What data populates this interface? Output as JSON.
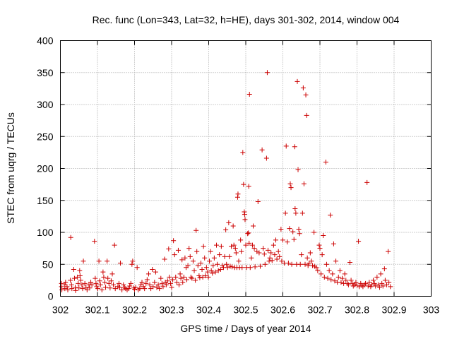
{
  "chart_data": {
    "type": "scatter",
    "title": "Rec. func (Lon=343, Lat=32, h=HE), days 301-302, 2014, window 004",
    "xlabel": "GPS time / Days of year 2014",
    "ylabel": "STEC from uqrg / TECUs",
    "xlim": [
      302,
      303
    ],
    "ylim": [
      0,
      400
    ],
    "xticks": [
      "302",
      "302.1",
      "302.2",
      "302.3",
      "302.4",
      "302.5",
      "302.6",
      "302.7",
      "302.8",
      "302.9",
      "303"
    ],
    "yticks": [
      "0",
      "50",
      "100",
      "150",
      "200",
      "250",
      "300",
      "350",
      "400"
    ],
    "grid": true,
    "legend": "none",
    "marker": "plus",
    "color": "#cc0000",
    "series": [
      {
        "points": [
          [
            302.003,
            20
          ],
          [
            302.003,
            15
          ],
          [
            302.004,
            10
          ],
          [
            302.012,
            18
          ],
          [
            302.012,
            12
          ],
          [
            302.014,
            22
          ],
          [
            302.018,
            15
          ],
          [
            302.02,
            10
          ],
          [
            302.027,
            25
          ],
          [
            302.028,
            92
          ],
          [
            302.03,
            18
          ],
          [
            302.031,
            12
          ],
          [
            302.036,
            42
          ],
          [
            302.038,
            28
          ],
          [
            302.04,
            14
          ],
          [
            302.041,
            9
          ],
          [
            302.046,
            30
          ],
          [
            302.048,
            20
          ],
          [
            302.05,
            13
          ],
          [
            302.052,
            40
          ],
          [
            302.053,
            32
          ],
          [
            302.055,
            25
          ],
          [
            302.058,
            18
          ],
          [
            302.06,
            12
          ],
          [
            302.062,
            55
          ],
          [
            302.066,
            20
          ],
          [
            302.069,
            14
          ],
          [
            302.072,
            10
          ],
          [
            302.077,
            18
          ],
          [
            302.079,
            13
          ],
          [
            302.082,
            22
          ],
          [
            302.085,
            18
          ],
          [
            302.092,
            86
          ],
          [
            302.094,
            28
          ],
          [
            302.096,
            20
          ],
          [
            302.098,
            15
          ],
          [
            302.101,
            12
          ],
          [
            302.104,
            55
          ],
          [
            302.106,
            24
          ],
          [
            302.108,
            18
          ],
          [
            302.112,
            10
          ],
          [
            302.115,
            38
          ],
          [
            302.117,
            30
          ],
          [
            302.12,
            22
          ],
          [
            302.122,
            14
          ],
          [
            302.126,
            55
          ],
          [
            302.128,
            28
          ],
          [
            302.131,
            20
          ],
          [
            302.134,
            13
          ],
          [
            302.137,
            24
          ],
          [
            302.14,
            35
          ],
          [
            302.143,
            18
          ],
          [
            302.146,
            80
          ],
          [
            302.148,
            12
          ],
          [
            302.155,
            15
          ],
          [
            302.158,
            20
          ],
          [
            302.16,
            14
          ],
          [
            302.162,
            52
          ],
          [
            302.166,
            10
          ],
          [
            302.17,
            18
          ],
          [
            302.173,
            14
          ],
          [
            302.176,
            12
          ],
          [
            302.18,
            10
          ],
          [
            302.184,
            12
          ],
          [
            302.187,
            16
          ],
          [
            302.19,
            20
          ],
          [
            302.193,
            50
          ],
          [
            302.195,
            55
          ],
          [
            302.198,
            13
          ],
          [
            302.2,
            11
          ],
          [
            302.203,
            14
          ],
          [
            302.207,
            45
          ],
          [
            302.21,
            10
          ],
          [
            302.214,
            12
          ],
          [
            302.217,
            18
          ],
          [
            302.22,
            22
          ],
          [
            302.224,
            15
          ],
          [
            302.227,
            12
          ],
          [
            302.231,
            20
          ],
          [
            302.234,
            26
          ],
          [
            302.238,
            35
          ],
          [
            302.241,
            18
          ],
          [
            302.244,
            12
          ],
          [
            302.248,
            42
          ],
          [
            302.25,
            15
          ],
          [
            302.254,
            22
          ],
          [
            302.257,
            38
          ],
          [
            302.26,
            14
          ],
          [
            302.264,
            18
          ],
          [
            302.267,
            12
          ],
          [
            302.271,
            28
          ],
          [
            302.274,
            20
          ],
          [
            302.277,
            15
          ],
          [
            302.281,
            58
          ],
          [
            302.283,
            22
          ],
          [
            302.286,
            18
          ],
          [
            302.289,
            24
          ],
          [
            302.292,
            74
          ],
          [
            302.294,
            30
          ],
          [
            302.297,
            20
          ],
          [
            302.3,
            14
          ],
          [
            302.303,
            26
          ],
          [
            302.305,
            87
          ],
          [
            302.308,
            65
          ],
          [
            302.311,
            30
          ],
          [
            302.314,
            22
          ],
          [
            302.318,
            72
          ],
          [
            302.32,
            18
          ],
          [
            302.323,
            35
          ],
          [
            302.325,
            28
          ],
          [
            302.328,
            57
          ],
          [
            302.33,
            22
          ],
          [
            302.333,
            30
          ],
          [
            302.336,
            60
          ],
          [
            302.339,
            45
          ],
          [
            302.341,
            26
          ],
          [
            302.344,
            48
          ],
          [
            302.347,
            75
          ],
          [
            302.35,
            62
          ],
          [
            302.352,
            30
          ],
          [
            302.355,
            28
          ],
          [
            302.358,
            55
          ],
          [
            302.361,
            40
          ],
          [
            302.364,
            25
          ],
          [
            302.366,
            103
          ],
          [
            302.368,
            70
          ],
          [
            302.371,
            48
          ],
          [
            302.374,
            32
          ],
          [
            302.376,
            29
          ],
          [
            302.379,
            52
          ],
          [
            302.382,
            42
          ],
          [
            302.384,
            30
          ],
          [
            302.386,
            78
          ],
          [
            302.389,
            60
          ],
          [
            302.391,
            32
          ],
          [
            302.394,
            45
          ],
          [
            302.397,
            38
          ],
          [
            302.399,
            30
          ],
          [
            302.402,
            55
          ],
          [
            302.405,
            70
          ],
          [
            302.407,
            40
          ],
          [
            302.41,
            36
          ],
          [
            302.412,
            48
          ],
          [
            302.415,
            60
          ],
          [
            302.418,
            38
          ],
          [
            302.421,
            80
          ],
          [
            302.423,
            50
          ],
          [
            302.426,
            40
          ],
          [
            302.429,
            65
          ],
          [
            302.432,
            42
          ],
          [
            302.434,
            78
          ],
          [
            302.437,
            48
          ],
          [
            302.44,
            45
          ],
          [
            302.443,
            62
          ],
          [
            302.446,
            104
          ],
          [
            302.448,
            50
          ],
          [
            302.451,
            45
          ],
          [
            302.454,
            115
          ],
          [
            302.456,
            62
          ],
          [
            302.458,
            47
          ],
          [
            302.461,
            78
          ],
          [
            302.463,
            46
          ],
          [
            302.466,
            110
          ],
          [
            302.468,
            80
          ],
          [
            302.47,
            45
          ],
          [
            302.472,
            75
          ],
          [
            302.474,
            68
          ],
          [
            302.476,
            45
          ],
          [
            302.478,
            155
          ],
          [
            302.479,
            160
          ],
          [
            302.481,
            55
          ],
          [
            302.483,
            45
          ],
          [
            302.486,
            88
          ],
          [
            302.488,
            70
          ],
          [
            302.49,
            45
          ],
          [
            302.492,
            225
          ],
          [
            302.494,
            175
          ],
          [
            302.496,
            132
          ],
          [
            302.497,
            128
          ],
          [
            302.498,
            120
          ],
          [
            302.5,
            80
          ],
          [
            302.502,
            45
          ],
          [
            302.505,
            98
          ],
          [
            302.507,
            99
          ],
          [
            302.508,
            172
          ],
          [
            302.509,
            83
          ],
          [
            302.51,
            316
          ],
          [
            302.512,
            45
          ],
          [
            302.515,
            60
          ],
          [
            302.518,
            80
          ],
          [
            302.52,
            110
          ],
          [
            302.523,
            75
          ],
          [
            302.525,
            46
          ],
          [
            302.53,
            70
          ],
          [
            302.533,
            148
          ],
          [
            302.536,
            68
          ],
          [
            302.539,
            47
          ],
          [
            302.544,
            229
          ],
          [
            302.547,
            75
          ],
          [
            302.55,
            66
          ],
          [
            302.552,
            50
          ],
          [
            302.556,
            216
          ],
          [
            302.558,
            350
          ],
          [
            302.56,
            72
          ],
          [
            302.563,
            55
          ],
          [
            302.565,
            60
          ],
          [
            302.568,
            68
          ],
          [
            302.571,
            56
          ],
          [
            302.575,
            80
          ],
          [
            302.578,
            65
          ],
          [
            302.581,
            88
          ],
          [
            302.584,
            58
          ],
          [
            302.588,
            70
          ],
          [
            302.591,
            62
          ],
          [
            302.595,
            105
          ],
          [
            302.597,
            55
          ],
          [
            302.6,
            88
          ],
          [
            302.604,
            52
          ],
          [
            302.607,
            130
          ],
          [
            302.609,
            235
          ],
          [
            302.612,
            85
          ],
          [
            302.615,
            52
          ],
          [
            302.618,
            106
          ],
          [
            302.62,
            176
          ],
          [
            302.622,
            170
          ],
          [
            302.624,
            50
          ],
          [
            302.627,
            101
          ],
          [
            302.63,
            89
          ],
          [
            302.632,
            234
          ],
          [
            302.633,
            137
          ],
          [
            302.635,
            130
          ],
          [
            302.637,
            50
          ],
          [
            302.639,
            336
          ],
          [
            302.641,
            198
          ],
          [
            302.643,
            105
          ],
          [
            302.645,
            98
          ],
          [
            302.647,
            50
          ],
          [
            302.65,
            65
          ],
          [
            302.653,
            130
          ],
          [
            302.655,
            326
          ],
          [
            302.657,
            176
          ],
          [
            302.66,
            50
          ],
          [
            302.662,
            315
          ],
          [
            302.664,
            283
          ],
          [
            302.666,
            60
          ],
          [
            302.668,
            48
          ],
          [
            302.671,
            52
          ],
          [
            302.674,
            68
          ],
          [
            302.677,
            55
          ],
          [
            302.68,
            48
          ],
          [
            302.684,
            100
          ],
          [
            302.686,
            47
          ],
          [
            302.69,
            45
          ],
          [
            302.694,
            40
          ],
          [
            302.698,
            80
          ],
          [
            302.7,
            75
          ],
          [
            302.703,
            35
          ],
          [
            302.706,
            65
          ],
          [
            302.709,
            95
          ],
          [
            302.712,
            30
          ],
          [
            302.716,
            210
          ],
          [
            302.718,
            50
          ],
          [
            302.721,
            28
          ],
          [
            302.725,
            40
          ],
          [
            302.728,
            127
          ],
          [
            302.73,
            26
          ],
          [
            302.734,
            35
          ],
          [
            302.737,
            82
          ],
          [
            302.74,
            24
          ],
          [
            302.743,
            55
          ],
          [
            302.747,
            22
          ],
          [
            302.75,
            30
          ],
          [
            302.754,
            40
          ],
          [
            302.757,
            22
          ],
          [
            302.76,
            28
          ],
          [
            302.764,
            20
          ],
          [
            302.767,
            35
          ],
          [
            302.77,
            25
          ],
          [
            302.774,
            20
          ],
          [
            302.777,
            18
          ],
          [
            302.781,
            53
          ],
          [
            302.784,
            25
          ],
          [
            302.787,
            20
          ],
          [
            302.79,
            16
          ],
          [
            302.794,
            18
          ],
          [
            302.797,
            22
          ],
          [
            302.8,
            17
          ],
          [
            302.804,
            86
          ],
          [
            302.806,
            15
          ],
          [
            302.81,
            20
          ],
          [
            302.813,
            17
          ],
          [
            302.816,
            15
          ],
          [
            302.82,
            18
          ],
          [
            302.823,
            20
          ],
          [
            302.827,
            178
          ],
          [
            302.83,
            16
          ],
          [
            302.833,
            22
          ],
          [
            302.837,
            15
          ],
          [
            302.84,
            18
          ],
          [
            302.844,
            25
          ],
          [
            302.847,
            20
          ],
          [
            302.85,
            16
          ],
          [
            302.854,
            30
          ],
          [
            302.857,
            18
          ],
          [
            302.861,
            14
          ],
          [
            302.864,
            35
          ],
          [
            302.867,
            20
          ],
          [
            302.87,
            16
          ],
          [
            302.874,
            43
          ],
          [
            302.876,
            25
          ],
          [
            302.88,
            18
          ],
          [
            302.884,
            70
          ],
          [
            302.886,
            22
          ],
          [
            302.89,
            15
          ]
        ]
      }
    ]
  }
}
